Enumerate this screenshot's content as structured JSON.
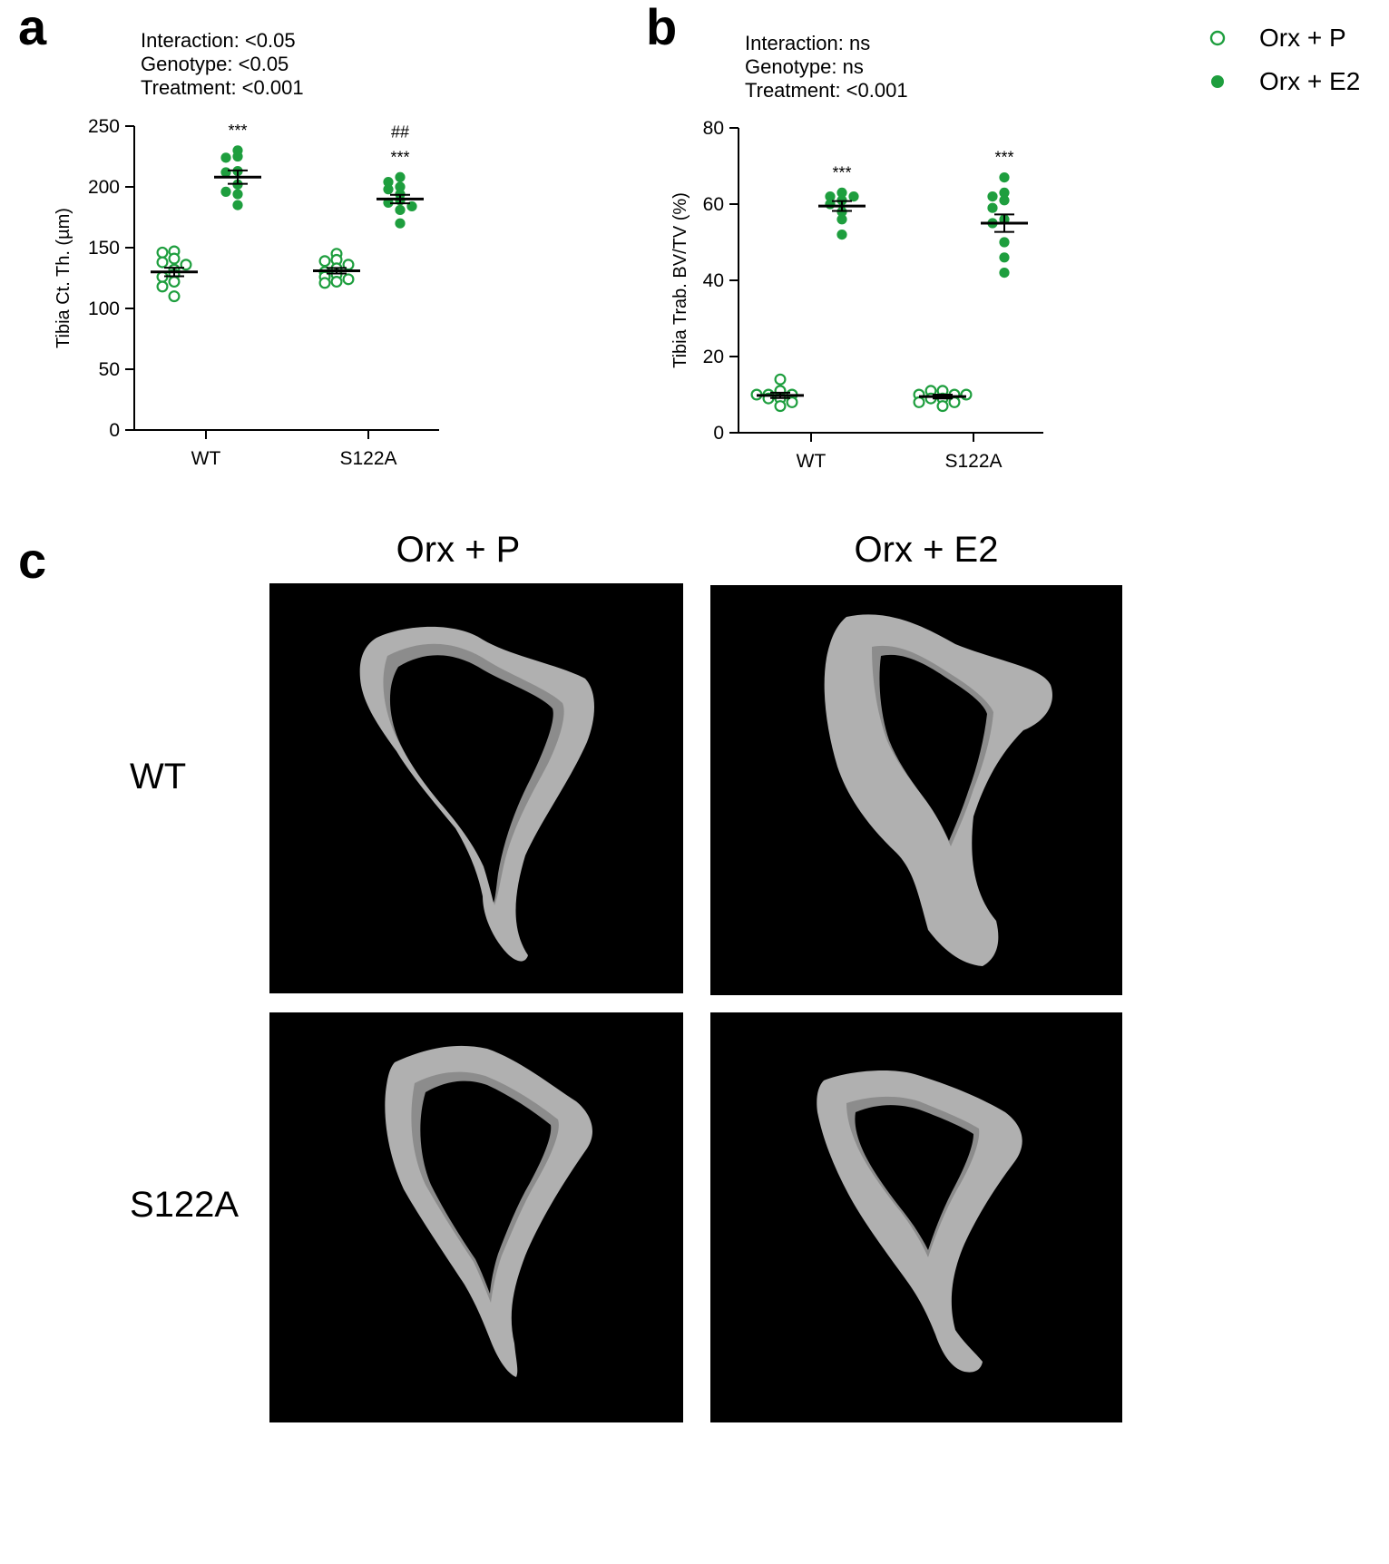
{
  "panel_a": {
    "label": "a"
  },
  "panel_b": {
    "label": "b"
  },
  "panel_c": {
    "label": "c",
    "col_labels": [
      "Orx + P",
      "Orx + E2"
    ],
    "row_labels": [
      "WT",
      "S122A"
    ]
  },
  "legend": {
    "items": [
      {
        "label": "Orx + P",
        "style": "open"
      },
      {
        "label": "Orx + E2",
        "style": "filled"
      }
    ]
  },
  "colors": {
    "green": "#1e9e3e",
    "black": "#000000",
    "bone": "#b0b0b0",
    "bone_inner": "#8c8c8c"
  },
  "chart_data": [
    {
      "type": "scatter",
      "stats": [
        "Interaction: <0.05",
        "Genotype: <0.05",
        "Treatment: <0.001"
      ],
      "ylabel": "Tibia Ct. Th. (µm)",
      "categories": [
        "WT",
        "S122A"
      ],
      "ylim": [
        0,
        250
      ],
      "yticks": [
        0,
        50,
        100,
        150,
        200,
        250
      ],
      "series": [
        {
          "name": "Orx + P",
          "style": "open",
          "points": [
            [
              147,
              146,
              141,
              138,
              136,
              132,
              128,
              126,
              122,
              118,
              110
            ],
            [
              145,
              140,
              139,
              136,
              133,
              130,
              128,
              126,
              124,
              122,
              121
            ]
          ],
          "mean": [
            130,
            131
          ],
          "sem": [
            3.5,
            2.3
          ]
        },
        {
          "name": "Orx + E2",
          "style": "filled",
          "points": [
            [
              230,
              225,
              224,
              213,
              212,
              202,
              196,
              194,
              185
            ],
            [
              208,
              204,
              200,
              198,
              194,
              189,
              187,
              184,
              181,
              170
            ]
          ],
          "mean": [
            208,
            190
          ],
          "sem": [
            5.5,
            3.5
          ]
        }
      ],
      "annotations": [
        {
          "category": 0,
          "lines": [
            "***"
          ]
        },
        {
          "category": 1,
          "lines": [
            "##",
            "***"
          ]
        }
      ]
    },
    {
      "type": "scatter",
      "stats": [
        "Interaction: ns",
        "Genotype: ns",
        "Treatment: <0.001"
      ],
      "ylabel": "Tibia Trab. BV/TV (%)",
      "categories": [
        "WT",
        "S122A"
      ],
      "ylim": [
        0,
        80
      ],
      "yticks": [
        0,
        20,
        40,
        60,
        80
      ],
      "series": [
        {
          "name": "Orx + P",
          "style": "open",
          "points": [
            [
              14,
              11,
              10,
              10,
              10,
              9,
              9,
              8,
              7
            ],
            [
              11,
              11,
              10,
              10,
              10,
              9,
              9,
              8,
              8,
              7
            ]
          ],
          "mean": [
            9.8,
            9.5
          ],
          "sem": [
            0.7,
            0.5
          ]
        },
        {
          "name": "Orx + E2",
          "style": "filled",
          "points": [
            [
              63,
              62,
              62,
              61,
              60,
              58,
              56,
              52
            ],
            [
              67,
              63,
              62,
              61,
              59,
              56,
              55,
              50,
              46,
              42
            ]
          ],
          "mean": [
            59.5,
            55
          ],
          "sem": [
            1.3,
            2.3
          ]
        }
      ],
      "annotations": [
        {
          "category": 0,
          "lines": [
            "***"
          ]
        },
        {
          "category": 1,
          "lines": [
            "***"
          ]
        }
      ]
    }
  ]
}
